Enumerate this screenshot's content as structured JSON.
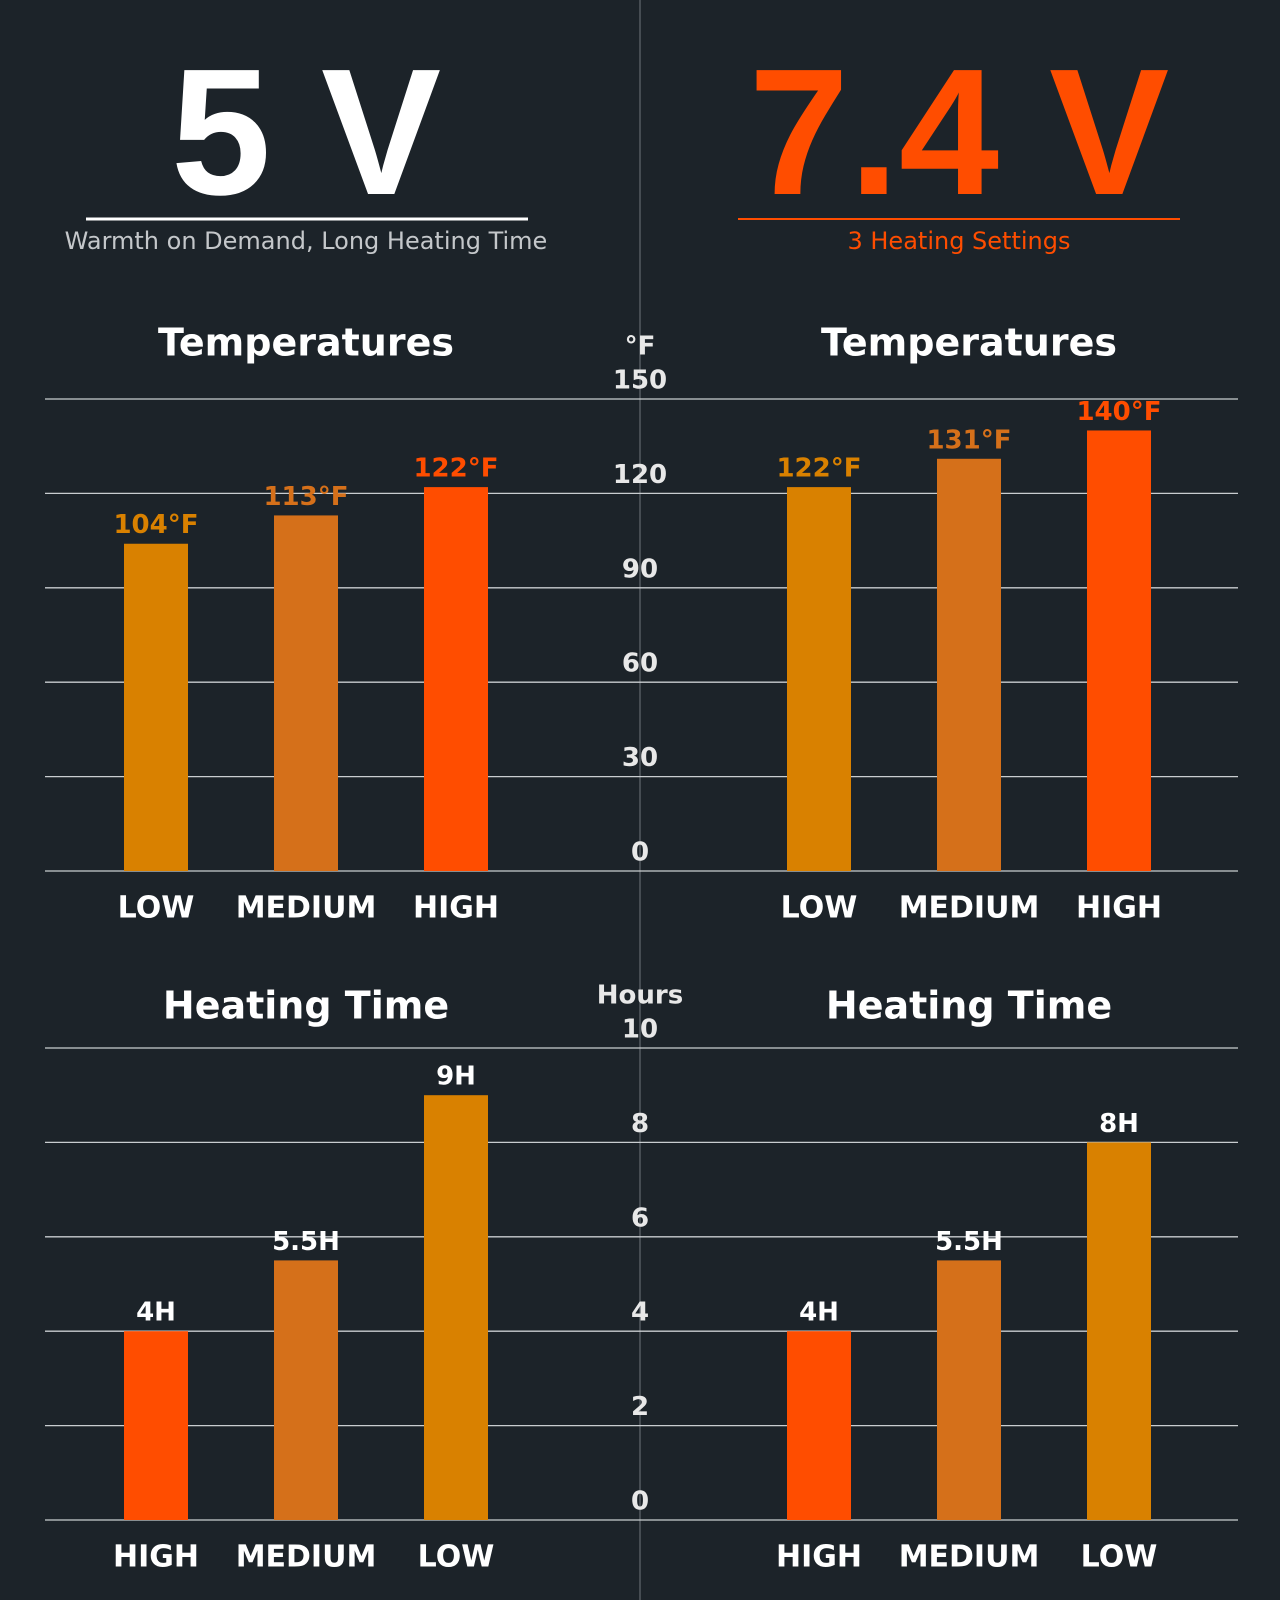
{
  "header": {
    "left": {
      "voltage": "5 V",
      "subtitle": "Warmth on Demand, Long Heating Time"
    },
    "right": {
      "voltage": "7.4 V",
      "subtitle": "3 Heating Settings"
    }
  },
  "chart_data": [
    {
      "type": "bar",
      "title": "Temperatures",
      "ylabel": "°F",
      "categories": [
        "LOW",
        "MEDIUM",
        "HIGH"
      ],
      "values": [
        104,
        113,
        122
      ],
      "value_labels": [
        "104°F",
        "113°F",
        "122°F"
      ],
      "colors": [
        "#d98100",
        "#d5701a",
        "#ff4d00"
      ],
      "ylim": [
        0,
        150
      ],
      "yticks": [
        0,
        30,
        60,
        90,
        120,
        150
      ],
      "grid": true
    },
    {
      "type": "bar",
      "title": "Temperatures",
      "categories": [
        "LOW",
        "MEDIUM",
        "HIGH"
      ],
      "values": [
        122,
        131,
        140
      ],
      "value_labels": [
        "122°F",
        "131°F",
        "140°F"
      ],
      "colors": [
        "#d98100",
        "#d5701a",
        "#ff4d00"
      ],
      "ylim": [
        0,
        150
      ]
    },
    {
      "type": "bar",
      "title": "Heating Time",
      "ylabel": "Hours",
      "categories": [
        "HIGH",
        "MEDIUM",
        "LOW"
      ],
      "values": [
        4,
        5.5,
        9
      ],
      "value_labels": [
        "4H",
        "5.5H",
        "9H"
      ],
      "colors": [
        "#ff4d00",
        "#d5701a",
        "#d98100"
      ],
      "value_label_color": "#ffffff",
      "ylim": [
        0,
        10
      ],
      "yticks": [
        0,
        2,
        4,
        6,
        8,
        10
      ],
      "grid": true
    },
    {
      "type": "bar",
      "title": "Heating Time",
      "categories": [
        "HIGH",
        "MEDIUM",
        "LOW"
      ],
      "values": [
        4,
        5.5,
        8
      ],
      "value_labels": [
        "4H",
        "5.5H",
        "8H"
      ],
      "colors": [
        "#ff4d00",
        "#d5701a",
        "#d98100"
      ],
      "value_label_color": "#ffffff",
      "ylim": [
        0,
        10
      ]
    }
  ]
}
